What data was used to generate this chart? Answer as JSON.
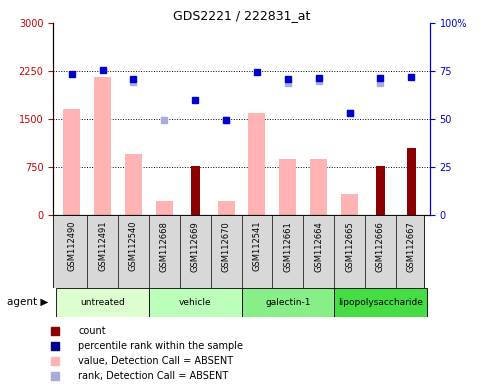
{
  "title": "GDS2221 / 222831_at",
  "samples": [
    "GSM112490",
    "GSM112491",
    "GSM112540",
    "GSM112668",
    "GSM112669",
    "GSM112670",
    "GSM112541",
    "GSM112661",
    "GSM112664",
    "GSM112665",
    "GSM112666",
    "GSM112667"
  ],
  "groups": [
    {
      "label": "untreated",
      "color": "#ddffd0",
      "indices": [
        0,
        1,
        2
      ]
    },
    {
      "label": "vehicle",
      "color": "#bbffbb",
      "indices": [
        3,
        4,
        5
      ]
    },
    {
      "label": "galectin-1",
      "color": "#88ee88",
      "indices": [
        6,
        7,
        8
      ]
    },
    {
      "label": "lipopolysaccharide",
      "color": "#44dd44",
      "indices": [
        9,
        10,
        11
      ]
    }
  ],
  "dark_red_values": [
    null,
    null,
    null,
    null,
    760,
    null,
    null,
    null,
    null,
    null,
    760,
    1050
  ],
  "pink_values": [
    1650,
    2150,
    950,
    220,
    null,
    220,
    1600,
    870,
    870,
    330,
    null,
    null
  ],
  "blue_squares": [
    2200,
    2270,
    2130,
    null,
    1800,
    1490,
    2240,
    2120,
    2140,
    1590,
    2140,
    2160
  ],
  "lav_squares": [
    null,
    null,
    2080,
    1490,
    null,
    1490,
    null,
    2060,
    2100,
    1590,
    2060,
    null
  ],
  "ylim_left": [
    0,
    3000
  ],
  "ylim_right": [
    0,
    100
  ],
  "yticks_left": [
    0,
    750,
    1500,
    2250,
    3000
  ],
  "ytlabels_left": [
    "0",
    "750",
    "1500",
    "2250",
    "3000"
  ],
  "yticks_right": [
    0,
    25,
    50,
    75,
    100
  ],
  "ytlabels_right": [
    "0",
    "25",
    "50",
    "75",
    "100%"
  ],
  "left_tick_color": "#cc0000",
  "right_tick_color": "#0000cc",
  "legend_items": [
    {
      "label": "count",
      "color": "#8b0000"
    },
    {
      "label": "percentile rank within the sample",
      "color": "#00008b"
    },
    {
      "label": "value, Detection Call = ABSENT",
      "color": "#ffb3b3"
    },
    {
      "label": "rank, Detection Call = ABSENT",
      "color": "#aaaadd"
    }
  ]
}
